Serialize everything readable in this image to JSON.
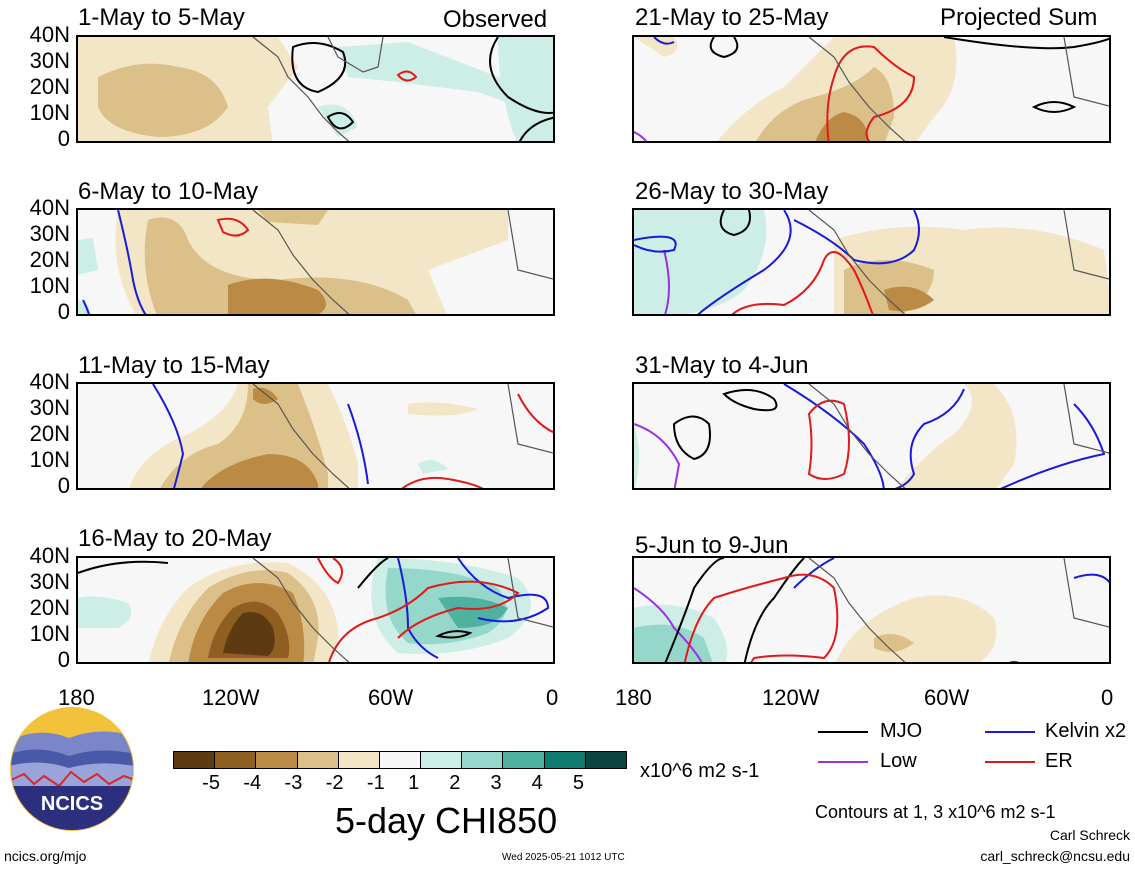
{
  "panels_left": [
    {
      "title": "1-May to 5-May",
      "tag": "Observed"
    },
    {
      "title": "6-May to 10-May",
      "tag": ""
    },
    {
      "title": "11-May to 15-May",
      "tag": ""
    },
    {
      "title": "16-May to 20-May",
      "tag": ""
    }
  ],
  "panels_right": [
    {
      "title": "21-May to 25-May",
      "tag": "Projected Sum"
    },
    {
      "title": "26-May to 30-May",
      "tag": ""
    },
    {
      "title": "31-May to 4-Jun",
      "tag": ""
    },
    {
      "title": "5-Jun to 9-Jun",
      "tag": ""
    }
  ],
  "y_ticks": [
    "40N",
    "30N",
    "20N",
    "10N",
    "0"
  ],
  "x_ticks": [
    "180",
    "120W",
    "60W",
    "0"
  ],
  "legend": {
    "ticks": [
      "-5",
      "-4",
      "-3",
      "-2",
      "-1",
      "1",
      "2",
      "3",
      "4",
      "5"
    ],
    "units": "x10^6 m2 s-1",
    "colors": [
      "#5c3b12",
      "#8f5f22",
      "#bb8a45",
      "#dcc08a",
      "#f3e6c6",
      "#f7f7f7",
      "#cdeee6",
      "#95d8cb",
      "#4fb1a0",
      "#0f7a70",
      "#0a463f"
    ],
    "title": "5-day CHI850"
  },
  "contour_key": {
    "items": [
      {
        "label": "MJO",
        "color": "#000000"
      },
      {
        "label": "Kelvin x2",
        "color": "#1a1adb"
      },
      {
        "label": "Low",
        "color": "#9b30e0"
      },
      {
        "label": "ER",
        "color": "#e01a1a"
      }
    ],
    "note": "Contours at 1, 3 x10^6 m2 s-1"
  },
  "logo_text": "NCICS",
  "footer": {
    "url": "ncics.org/mjo",
    "timestamp": "Wed 2025-05-21 1012 UTC",
    "author": "Carl Schreck",
    "email": "carl_schreck@ncsu.edu"
  }
}
